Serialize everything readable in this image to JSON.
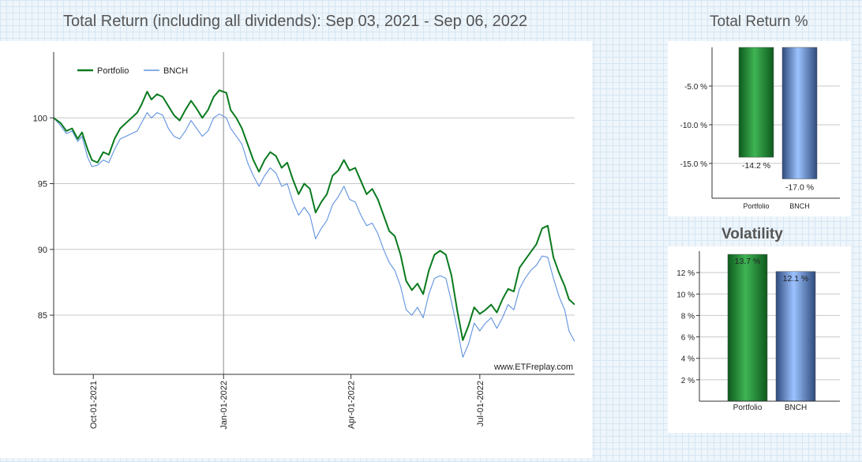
{
  "colors": {
    "portfolio": "#0a7a1e",
    "benchmark": "#5f92de",
    "grid": "#c8c8c8",
    "axis": "#333333"
  },
  "main_chart": {
    "title": "Total Return (including all dividends): Sep 03, 2021 - Sep 06, 2022",
    "watermark": "www.ETFreplay.com",
    "legend": [
      "Portfolio",
      "BNCH"
    ],
    "chart_data": {
      "type": "line",
      "title": "Total Return (including all dividends): Sep 03, 2021 - Sep 06, 2022",
      "x_range": [
        "2021-09-03",
        "2022-09-06"
      ],
      "ylim": [
        80.5,
        105
      ],
      "y_ticks": [
        85,
        90,
        95,
        100
      ],
      "x_ticks": [
        "Oct-01-2021",
        "Jan-01-2022",
        "Apr-01-2022",
        "Jul-01-2022"
      ],
      "grid": true,
      "legend_position": "top-left",
      "series": [
        {
          "name": "Portfolio",
          "points": [
            [
              "2021-09-03",
              100.0
            ],
            [
              "2021-09-08",
              99.6
            ],
            [
              "2021-09-12",
              99.0
            ],
            [
              "2021-09-16",
              99.2
            ],
            [
              "2021-09-20",
              98.4
            ],
            [
              "2021-09-23",
              98.9
            ],
            [
              "2021-09-27",
              97.6
            ],
            [
              "2021-09-30",
              96.8
            ],
            [
              "2021-10-04",
              96.6
            ],
            [
              "2021-10-08",
              97.4
            ],
            [
              "2021-10-12",
              97.2
            ],
            [
              "2021-10-16",
              98.4
            ],
            [
              "2021-10-20",
              99.2
            ],
            [
              "2021-10-24",
              99.6
            ],
            [
              "2021-10-28",
              100.0
            ],
            [
              "2021-11-01",
              100.4
            ],
            [
              "2021-11-04",
              101.0
            ],
            [
              "2021-11-08",
              102.0
            ],
            [
              "2021-11-11",
              101.4
            ],
            [
              "2021-11-15",
              101.8
            ],
            [
              "2021-11-19",
              101.6
            ],
            [
              "2021-11-23",
              100.9
            ],
            [
              "2021-11-27",
              100.2
            ],
            [
              "2021-12-01",
              99.8
            ],
            [
              "2021-12-05",
              100.6
            ],
            [
              "2021-12-09",
              101.3
            ],
            [
              "2021-12-13",
              100.7
            ],
            [
              "2021-12-17",
              100.0
            ],
            [
              "2021-12-21",
              100.6
            ],
            [
              "2021-12-25",
              101.6
            ],
            [
              "2021-12-29",
              102.1
            ],
            [
              "2022-01-03",
              101.9
            ],
            [
              "2022-01-06",
              100.6
            ],
            [
              "2022-01-10",
              100.0
            ],
            [
              "2022-01-14",
              99.2
            ],
            [
              "2022-01-18",
              98.0
            ],
            [
              "2022-01-22",
              96.8
            ],
            [
              "2022-01-26",
              95.9
            ],
            [
              "2022-01-30",
              96.8
            ],
            [
              "2022-02-03",
              97.4
            ],
            [
              "2022-02-07",
              97.1
            ],
            [
              "2022-02-11",
              96.2
            ],
            [
              "2022-02-15",
              96.6
            ],
            [
              "2022-02-19",
              95.3
            ],
            [
              "2022-02-23",
              94.2
            ],
            [
              "2022-02-27",
              95.0
            ],
            [
              "2022-03-03",
              94.6
            ],
            [
              "2022-03-07",
              92.8
            ],
            [
              "2022-03-11",
              93.6
            ],
            [
              "2022-03-15",
              94.2
            ],
            [
              "2022-03-19",
              95.6
            ],
            [
              "2022-03-23",
              96.0
            ],
            [
              "2022-03-27",
              96.8
            ],
            [
              "2022-03-31",
              96.0
            ],
            [
              "2022-04-04",
              96.2
            ],
            [
              "2022-04-08",
              95.2
            ],
            [
              "2022-04-12",
              94.2
            ],
            [
              "2022-04-16",
              94.6
            ],
            [
              "2022-04-20",
              93.8
            ],
            [
              "2022-04-24",
              92.6
            ],
            [
              "2022-04-28",
              91.4
            ],
            [
              "2022-05-02",
              91.0
            ],
            [
              "2022-05-06",
              89.6
            ],
            [
              "2022-05-10",
              87.6
            ],
            [
              "2022-05-14",
              86.9
            ],
            [
              "2022-05-18",
              87.4
            ],
            [
              "2022-05-22",
              86.6
            ],
            [
              "2022-05-26",
              88.4
            ],
            [
              "2022-05-30",
              89.6
            ],
            [
              "2022-06-03",
              89.9
            ],
            [
              "2022-06-07",
              89.6
            ],
            [
              "2022-06-11",
              88.0
            ],
            [
              "2022-06-15",
              85.4
            ],
            [
              "2022-06-19",
              83.1
            ],
            [
              "2022-06-23",
              84.2
            ],
            [
              "2022-06-27",
              85.6
            ],
            [
              "2022-07-01",
              85.1
            ],
            [
              "2022-07-05",
              85.4
            ],
            [
              "2022-07-09",
              85.8
            ],
            [
              "2022-07-13",
              85.2
            ],
            [
              "2022-07-17",
              86.2
            ],
            [
              "2022-07-21",
              87.0
            ],
            [
              "2022-07-25",
              86.8
            ],
            [
              "2022-07-29",
              88.6
            ],
            [
              "2022-08-02",
              89.2
            ],
            [
              "2022-08-06",
              89.8
            ],
            [
              "2022-08-10",
              90.4
            ],
            [
              "2022-08-14",
              91.6
            ],
            [
              "2022-08-18",
              91.8
            ],
            [
              "2022-08-22",
              89.4
            ],
            [
              "2022-08-26",
              88.2
            ],
            [
              "2022-08-30",
              87.2
            ],
            [
              "2022-09-02",
              86.2
            ],
            [
              "2022-09-06",
              85.8
            ]
          ]
        },
        {
          "name": "BNCH",
          "points": [
            [
              "2021-09-03",
              100.0
            ],
            [
              "2021-09-08",
              99.4
            ],
            [
              "2021-09-12",
              98.8
            ],
            [
              "2021-09-16",
              99.0
            ],
            [
              "2021-09-20",
              98.2
            ],
            [
              "2021-09-23",
              98.6
            ],
            [
              "2021-09-27",
              97.0
            ],
            [
              "2021-09-30",
              96.3
            ],
            [
              "2021-10-04",
              96.4
            ],
            [
              "2021-10-08",
              96.8
            ],
            [
              "2021-10-12",
              96.6
            ],
            [
              "2021-10-16",
              97.6
            ],
            [
              "2021-10-20",
              98.4
            ],
            [
              "2021-10-24",
              98.6
            ],
            [
              "2021-10-28",
              98.8
            ],
            [
              "2021-11-01",
              99.0
            ],
            [
              "2021-11-04",
              99.6
            ],
            [
              "2021-11-08",
              100.4
            ],
            [
              "2021-11-11",
              100.0
            ],
            [
              "2021-11-15",
              100.4
            ],
            [
              "2021-11-19",
              100.2
            ],
            [
              "2021-11-23",
              99.2
            ],
            [
              "2021-11-27",
              98.6
            ],
            [
              "2021-12-01",
              98.4
            ],
            [
              "2021-12-05",
              99.0
            ],
            [
              "2021-12-09",
              99.8
            ],
            [
              "2021-12-13",
              99.2
            ],
            [
              "2021-12-17",
              98.6
            ],
            [
              "2021-12-21",
              99.0
            ],
            [
              "2021-12-25",
              100.0
            ],
            [
              "2021-12-29",
              100.3
            ],
            [
              "2022-01-03",
              100.0
            ],
            [
              "2022-01-06",
              99.2
            ],
            [
              "2022-01-10",
              98.6
            ],
            [
              "2022-01-14",
              98.0
            ],
            [
              "2022-01-18",
              96.6
            ],
            [
              "2022-01-22",
              95.6
            ],
            [
              "2022-01-26",
              94.8
            ],
            [
              "2022-01-30",
              95.6
            ],
            [
              "2022-02-03",
              96.2
            ],
            [
              "2022-02-07",
              95.8
            ],
            [
              "2022-02-11",
              94.8
            ],
            [
              "2022-02-15",
              95.0
            ],
            [
              "2022-02-19",
              93.6
            ],
            [
              "2022-02-23",
              92.6
            ],
            [
              "2022-02-27",
              93.2
            ],
            [
              "2022-03-03",
              92.6
            ],
            [
              "2022-03-07",
              90.8
            ],
            [
              "2022-03-11",
              91.6
            ],
            [
              "2022-03-15",
              92.2
            ],
            [
              "2022-03-19",
              93.4
            ],
            [
              "2022-03-23",
              94.0
            ],
            [
              "2022-03-27",
              94.8
            ],
            [
              "2022-03-31",
              93.8
            ],
            [
              "2022-04-04",
              93.6
            ],
            [
              "2022-04-08",
              92.6
            ],
            [
              "2022-04-12",
              91.8
            ],
            [
              "2022-04-16",
              92.0
            ],
            [
              "2022-04-20",
              91.2
            ],
            [
              "2022-04-24",
              90.0
            ],
            [
              "2022-04-28",
              89.0
            ],
            [
              "2022-05-02",
              88.4
            ],
            [
              "2022-05-06",
              87.2
            ],
            [
              "2022-05-10",
              85.4
            ],
            [
              "2022-05-14",
              85.0
            ],
            [
              "2022-05-18",
              85.6
            ],
            [
              "2022-05-22",
              84.8
            ],
            [
              "2022-05-26",
              86.6
            ],
            [
              "2022-05-30",
              87.8
            ],
            [
              "2022-06-03",
              88.0
            ],
            [
              "2022-06-07",
              87.8
            ],
            [
              "2022-06-11",
              86.0
            ],
            [
              "2022-06-15",
              84.0
            ],
            [
              "2022-06-19",
              81.8
            ],
            [
              "2022-06-23",
              82.8
            ],
            [
              "2022-06-27",
              84.4
            ],
            [
              "2022-07-01",
              83.8
            ],
            [
              "2022-07-05",
              84.4
            ],
            [
              "2022-07-09",
              84.8
            ],
            [
              "2022-07-13",
              84.0
            ],
            [
              "2022-07-17",
              84.8
            ],
            [
              "2022-07-21",
              85.8
            ],
            [
              "2022-07-25",
              85.4
            ],
            [
              "2022-07-29",
              87.0
            ],
            [
              "2022-08-02",
              87.8
            ],
            [
              "2022-08-06",
              88.4
            ],
            [
              "2022-08-10",
              88.8
            ],
            [
              "2022-08-14",
              89.5
            ],
            [
              "2022-08-18",
              89.4
            ],
            [
              "2022-08-22",
              87.8
            ],
            [
              "2022-08-26",
              86.4
            ],
            [
              "2022-08-30",
              85.4
            ],
            [
              "2022-09-02",
              83.8
            ],
            [
              "2022-09-06",
              83.0
            ]
          ]
        }
      ]
    }
  },
  "total_return": {
    "title": "Total Return %",
    "chart_data": {
      "type": "bar",
      "categories": [
        "Portfolio",
        "BNCH"
      ],
      "values": [
        -14.2,
        -17.0
      ],
      "value_labels": [
        "-14.2 %",
        "-17.0 %"
      ],
      "ylim": [
        -19.5,
        0
      ],
      "y_ticks": [
        -5.0,
        -10.0,
        -15.0
      ],
      "y_tick_labels": [
        "-5.0 %",
        "-10.0 %",
        "-15.0 %"
      ],
      "grid": true
    }
  },
  "volatility": {
    "title": "Volatility",
    "chart_data": {
      "type": "bar",
      "categories": [
        "Portfolio",
        "BNCH"
      ],
      "values": [
        13.7,
        12.1
      ],
      "value_labels": [
        "13.7 %",
        "12.1 %"
      ],
      "ylim": [
        0,
        14
      ],
      "y_ticks": [
        2,
        4,
        6,
        8,
        10,
        12
      ],
      "y_tick_labels": [
        "2 %",
        "4 %",
        "6 %",
        "8 %",
        "10 %",
        "12 %"
      ],
      "grid": true
    }
  }
}
